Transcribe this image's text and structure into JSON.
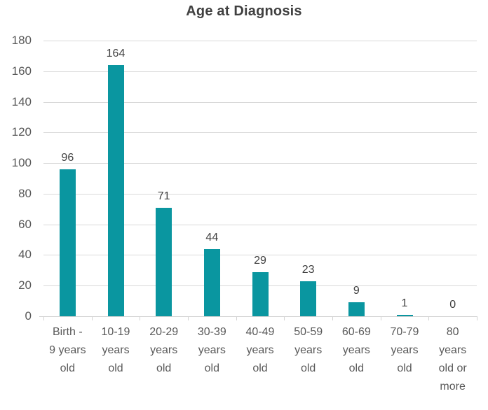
{
  "chart_data": {
    "type": "bar",
    "title": "Age at Diagnosis",
    "categories": [
      "Birth - 9 years old",
      "10-19 years old",
      "20-29 years old",
      "30-39 years old",
      "40-49 years old",
      "50-59 years old",
      "60-69 years old",
      "70-79 years old",
      "80 years old or more"
    ],
    "categories_wrapped": [
      [
        "Birth -",
        "9 years",
        "old"
      ],
      [
        "10-19",
        "years",
        "old"
      ],
      [
        "20-29",
        "years",
        "old"
      ],
      [
        "30-39",
        "years",
        "old"
      ],
      [
        "40-49",
        "years",
        "old"
      ],
      [
        "50-59",
        "years",
        "old"
      ],
      [
        "60-69",
        "years",
        "old"
      ],
      [
        "70-79",
        "years",
        "old"
      ],
      [
        "80",
        "years",
        "old or",
        "more"
      ]
    ],
    "values": [
      96,
      164,
      71,
      44,
      29,
      23,
      9,
      1,
      0
    ],
    "data_labels": [
      "96",
      "164",
      "71",
      "44",
      "29",
      "23",
      "9",
      "1",
      "0"
    ],
    "xlabel": "",
    "ylabel": "",
    "ylim": [
      0,
      180
    ],
    "ytick_step": 20,
    "yticks": [
      0,
      20,
      40,
      60,
      80,
      100,
      120,
      140,
      160,
      180
    ],
    "grid": "horizontal",
    "legend": "none",
    "colors": {
      "bar": "#0A96A0",
      "gridline": "#D9D9D9",
      "axis_line": "#D3D3D3",
      "tick_label": "#595959",
      "title": "#404040",
      "data_label": "#404040",
      "background": "#FFFFFF"
    }
  }
}
